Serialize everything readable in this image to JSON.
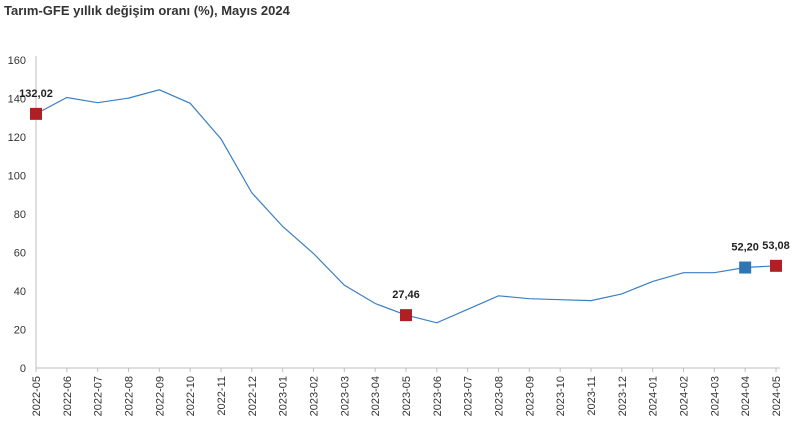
{
  "chart_data": {
    "type": "line",
    "title": "Tarım-GFE yıllık değişim oranı (%), Mayıs 2024",
    "xlabel": "",
    "ylabel": "",
    "ylim": [
      0,
      160
    ],
    "yticks": [
      0,
      20,
      40,
      60,
      80,
      100,
      120,
      140,
      160
    ],
    "grid": false,
    "legend": "none",
    "line_color": "#3b7fc4",
    "categories": [
      "2022-05",
      "2022-06",
      "2022-07",
      "2022-08",
      "2022-09",
      "2022-10",
      "2022-11",
      "2022-12",
      "2023-01",
      "2023-02",
      "2023-03",
      "2023-04",
      "2023-05",
      "2023-06",
      "2023-07",
      "2023-08",
      "2023-09",
      "2023-10",
      "2023-11",
      "2023-12",
      "2024-01",
      "2024-02",
      "2024-03",
      "2024-04",
      "2024-05"
    ],
    "series": [
      {
        "values": [
          132.02,
          140.5,
          137.8,
          140.2,
          144.5,
          137.5,
          119.0,
          91.0,
          73.5,
          59.5,
          43.0,
          33.5,
          27.46,
          23.5,
          30.5,
          37.5,
          36.0,
          35.5,
          35.0,
          38.5,
          45.0,
          49.5,
          49.5,
          52.2,
          53.08
        ]
      }
    ],
    "markers": [
      {
        "index": 0,
        "label": "132,02",
        "color": "#b01f24"
      },
      {
        "index": 12,
        "label": "27,46",
        "color": "#b01f24"
      },
      {
        "index": 23,
        "label": "52,20",
        "color": "#2e75b6"
      },
      {
        "index": 24,
        "label": "53,08",
        "color": "#b01f24"
      }
    ]
  }
}
